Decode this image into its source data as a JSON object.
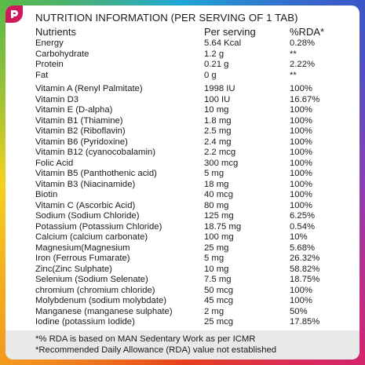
{
  "title": "NUTRITION INFORMATION (PER SERVING OF 1 TAB)",
  "headers": {
    "nutrients": "Nutrients",
    "per_serving": "Per serving",
    "rda": "%RDA*"
  },
  "rows": [
    {
      "name": "Energy",
      "value": "5.64 Kcal",
      "rda": "0.28%"
    },
    {
      "name": "Carbohydrate",
      "value": "1.2 g",
      "rda": "**"
    },
    {
      "name": "Protein",
      "value": "0.21 g",
      "rda": "2.22%"
    },
    {
      "name": "Fat",
      "value": "0 g",
      "rda": "**"
    },
    {
      "name": "Vitamin A (Renyl Palmitate)",
      "value": "1998 IU",
      "rda": "100%"
    },
    {
      "name": "Vitamin D3",
      "value": "100 IU",
      "rda": "16.67%"
    },
    {
      "name": "Vitamin E (D-alpha)",
      "value": "10 mg",
      "rda": "100%"
    },
    {
      "name": "Vitamin B1 (Thiamine)",
      "value": "1.8 mg",
      "rda": "100%"
    },
    {
      "name": "Vitamin B2 (Riboflavin)",
      "value": "2.5 mg",
      "rda": "100%"
    },
    {
      "name": "Vitamin B6 (Pyridoxine)",
      "value": "2.4 mg",
      "rda": "100%"
    },
    {
      "name": "Vitamin B12 (cyanocobalamin)",
      "value": "2.2 mcg",
      "rda": "100%"
    },
    {
      "name": "Folic Acid",
      "value": "300 mcg",
      "rda": "100%"
    },
    {
      "name": "Vitamin B5 (Panthothenic acid)",
      "value": "5 mg",
      "rda": "100%"
    },
    {
      "name": "Vitamin B3 (Niacinamide)",
      "value": "18 mg",
      "rda": "100%"
    },
    {
      "name": "Biotin",
      "value": "40 mcg",
      "rda": "100%"
    },
    {
      "name": "Vitamin C (Ascorbic Acid)",
      "value": "80 mg",
      "rda": "100%"
    },
    {
      "name": "Sodium (Sodium Chloride)",
      "value": "125 mg",
      "rda": "6.25%"
    },
    {
      "name": "Potassium (Potassium Chloride)",
      "value": "18.75 mg",
      "rda": "0.54%"
    },
    {
      "name": "Calcium (calcium carbonate)",
      "value": "100 mg",
      "rda": "10%"
    },
    {
      "name": "Magnesium(Magnesium",
      "value": "25 mg",
      "rda": "5.68%"
    },
    {
      "name": "Iron (Ferrous Fumarate)",
      "value": "5 mg",
      "rda": "26.32%"
    },
    {
      "name": "Zinc(Zinc Sulphate)",
      "value": "10 mg",
      "rda": "58.82%"
    },
    {
      "name": "Selenium (Sodium Selenate)",
      "value": "7.5 mg",
      "rda": "18.75%"
    },
    {
      "name": "chromium (chromium chloride)",
      "value": "50 mcg",
      "rda": "100%"
    },
    {
      "name": "Molybdenum (sodium molybdate)",
      "value": "45 mcg",
      "rda": "100%"
    },
    {
      "name": "Manganese (manganese sulphate)",
      "value": "2 mg",
      "rda": "50%"
    },
    {
      "name": "Iodine (potassium Iodide)",
      "value": "25 mcg",
      "rda": "17.85%"
    }
  ],
  "footer": {
    "note1": "*% RDA is based on MAN Sedentary Work as per ICMR",
    "note2": "*Recommended Daily Allowance (RDA) value not established"
  },
  "colors": {
    "logo": "#d2185c",
    "footer_bg": "#e9e9ea",
    "text": "#1a1a1a"
  },
  "icons": {
    "logo": "brand-logo-icon"
  }
}
